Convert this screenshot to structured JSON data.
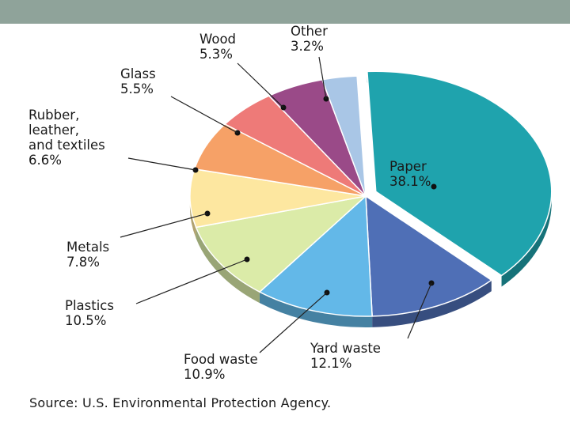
{
  "chart_data": {
    "type": "pie",
    "slices": [
      {
        "label": "Paper",
        "value": 38.1,
        "pct_label": "38.1%",
        "color": "#1fa3ad"
      },
      {
        "label": "Yard waste",
        "value": 12.1,
        "pct_label": "12.1%",
        "color": "#4f6fb6"
      },
      {
        "label": "Food waste",
        "value": 10.9,
        "pct_label": "10.9%",
        "color": "#63b8e8"
      },
      {
        "label": "Plastics",
        "value": 10.5,
        "pct_label": "10.5%",
        "color": "#dbeba8"
      },
      {
        "label": "Metals",
        "value": 7.8,
        "pct_label": "7.8%",
        "color": "#fde7a0"
      },
      {
        "label": "Rubber, leather, and textiles",
        "label_lines": [
          "Rubber,",
          "leather,",
          "and textiles"
        ],
        "value": 6.6,
        "pct_label": "6.6%",
        "color": "#f6a167"
      },
      {
        "label": "Glass",
        "value": 5.5,
        "pct_label": "5.5%",
        "color": "#ee7a78"
      },
      {
        "label": "Wood",
        "value": 5.3,
        "pct_label": "5.3%",
        "color": "#9a4a88"
      },
      {
        "label": "Other",
        "value": 3.2,
        "pct_label": "3.2%",
        "color": "#a9c6e6"
      }
    ],
    "source": "Source: U.S. Environmental Protection Agency."
  }
}
